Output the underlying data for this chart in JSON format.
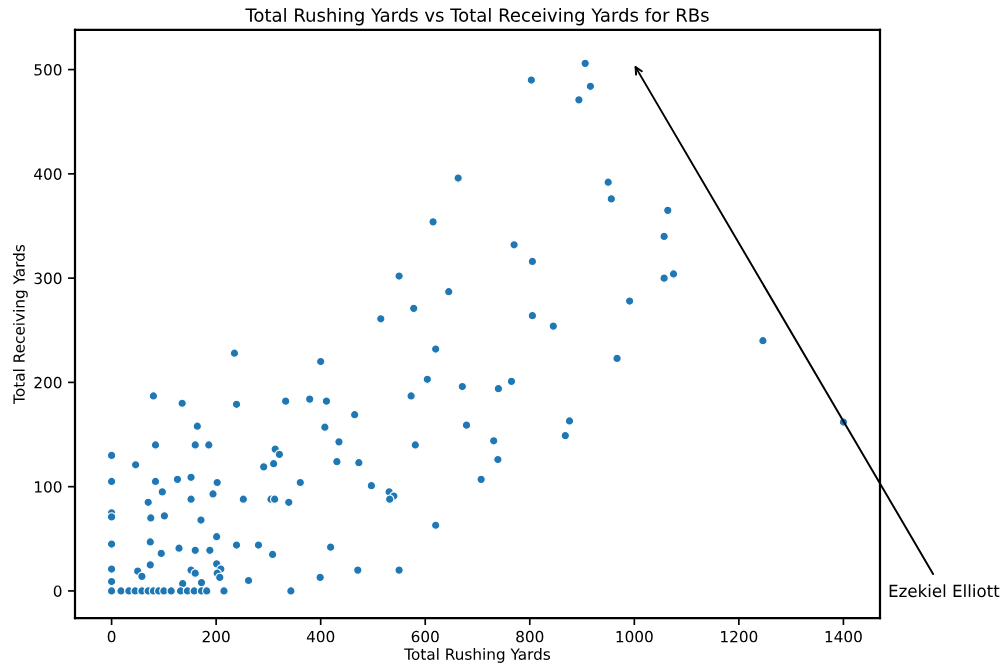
{
  "chart_data": {
    "type": "scatter",
    "title": "Total Rushing Yards vs Total Receiving Yards for RBs",
    "xlabel": "Total Rushing Yards",
    "ylabel": "Total Receiving Yards",
    "series": [
      {
        "color": "#1f77b4",
        "x": [
          803,
          663,
          615,
          770,
          805,
          550,
          645,
          578,
          515,
          805,
          906,
          916,
          894,
          950,
          956,
          1064,
          1057,
          1057,
          1075,
          991,
          845,
          1246,
          967,
          876,
          868,
          1400,
          235,
          620,
          400,
          80,
          135,
          239,
          333,
          379,
          411,
          573,
          604,
          671,
          740,
          765,
          164,
          408,
          465,
          679,
          84,
          160,
          186,
          435,
          581,
          731,
          0,
          313,
          321,
          291,
          310,
          431,
          473,
          739,
          46,
          0,
          84,
          126,
          152,
          202,
          361,
          497,
          707,
          97,
          194,
          531,
          540,
          532,
          70,
          152,
          252,
          305,
          312,
          339,
          0,
          0,
          75,
          101,
          171,
          620,
          0,
          74,
          201,
          239,
          281,
          95,
          129,
          160,
          188,
          308,
          419,
          0,
          74,
          50,
          58,
          152,
          160,
          201,
          209,
          202,
          207,
          262,
          399,
          471,
          550,
          0,
          172,
          136,
          0,
          18,
          33,
          45,
          58,
          70,
          80,
          90,
          100,
          114,
          132,
          145,
          158,
          172,
          182,
          215,
          343
        ],
        "values": [
          490,
          396,
          354,
          332,
          316,
          302,
          287,
          271,
          261,
          264,
          506,
          484,
          471,
          392,
          376,
          365,
          340,
          300,
          304,
          278,
          254,
          240,
          223,
          163,
          149,
          162,
          228,
          232,
          220,
          187,
          180,
          179,
          182,
          184,
          182,
          187,
          203,
          196,
          194,
          201,
          158,
          157,
          169,
          159,
          140,
          140,
          140,
          143,
          140,
          144,
          130,
          136,
          131,
          119,
          122,
          124,
          123,
          126,
          121,
          105,
          105,
          107,
          109,
          104,
          104,
          101,
          107,
          95,
          93,
          95,
          91,
          88,
          85,
          88,
          88,
          88,
          88,
          85,
          75,
          71,
          70,
          72,
          68,
          63,
          45,
          47,
          52,
          44,
          44,
          36,
          41,
          39,
          39,
          35,
          42,
          21,
          25,
          19,
          14,
          20,
          17,
          26,
          21,
          17,
          13,
          10,
          13,
          20,
          20,
          9,
          8,
          7,
          0,
          0,
          0,
          0,
          0,
          0,
          0,
          0,
          0,
          0,
          0,
          0,
          0,
          0,
          0,
          0,
          0
        ]
      }
    ],
    "marker": "circle",
    "xlim": [
      -70,
      1470
    ],
    "ylim": [
      -26,
      538
    ],
    "xticks": [
      0,
      200,
      400,
      600,
      800,
      1000,
      1200,
      1400
    ],
    "yticks": [
      0,
      100,
      200,
      300,
      400,
      500
    ],
    "grid": false,
    "legend": false,
    "annotations": [
      "Ezekiel Elliott"
    ]
  }
}
